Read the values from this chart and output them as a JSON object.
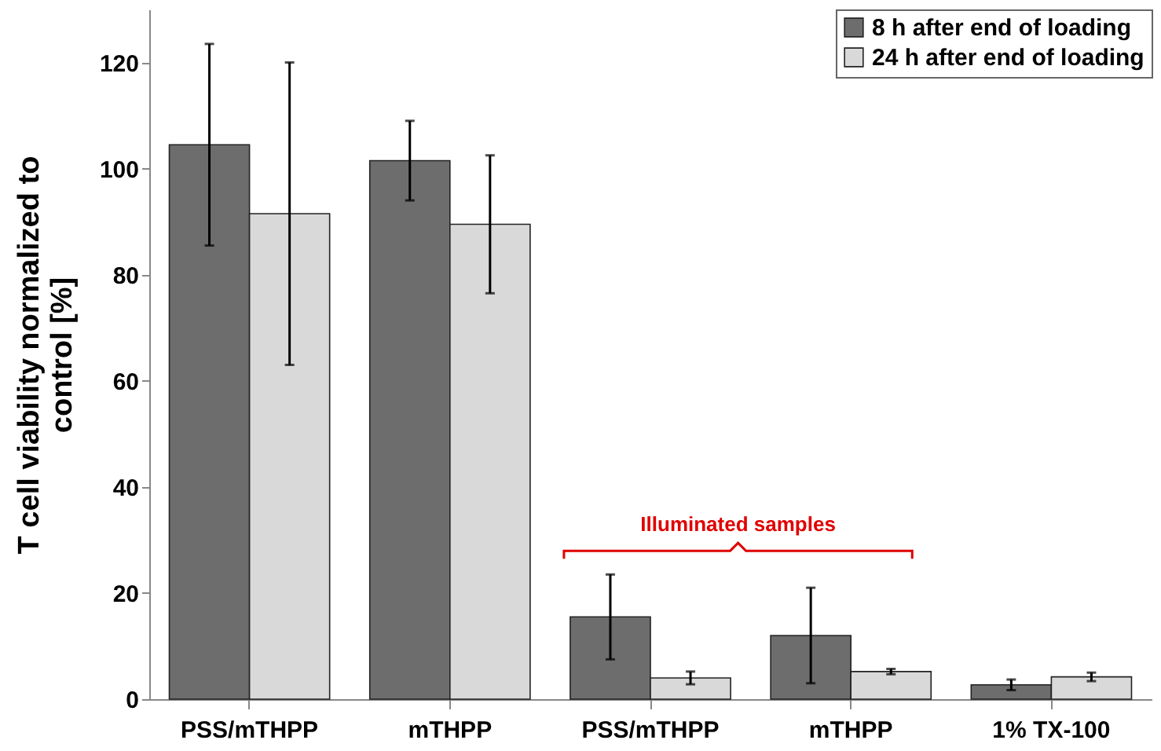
{
  "chart_data": {
    "type": "bar",
    "ylabel": "T cell viability normalized to control [%]",
    "categories": [
      "PSS/mTHPP",
      "mTHPP",
      "PSS/mTHPP",
      "mTHPP",
      "1% TX-100"
    ],
    "series": [
      {
        "name": "8 h after end of loading",
        "color": "#6d6d6d",
        "values": [
          104.5,
          101.5,
          15.5,
          12,
          2.7
        ],
        "errors": [
          19,
          7.5,
          8,
          9,
          1
        ]
      },
      {
        "name": "24 h after end of loading",
        "color": "#d9d9d9",
        "values": [
          91.5,
          89.5,
          4,
          5.2,
          4.2
        ],
        "errors": [
          28.5,
          13,
          1.2,
          0.5,
          0.8
        ]
      }
    ],
    "ylim": [
      0,
      130
    ],
    "yticks": [
      0,
      20,
      40,
      60,
      80,
      100,
      120
    ],
    "legend": "top right",
    "annotations": [
      "Illuminated samples"
    ]
  }
}
